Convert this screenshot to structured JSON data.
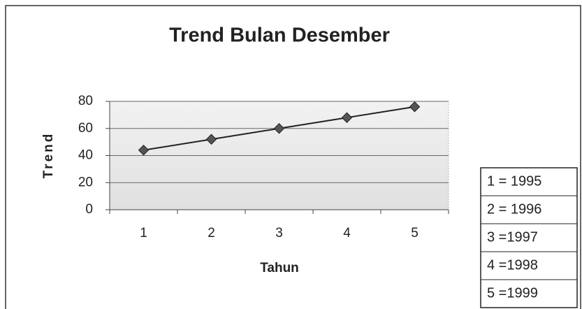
{
  "chart_data": {
    "type": "line",
    "title": "Trend Bulan Desember",
    "x_label": "Tahun",
    "y_label": "Trend",
    "categories": [
      "1",
      "2",
      "3",
      "4",
      "5"
    ],
    "series": [
      {
        "name": "Trend",
        "color": "#222222",
        "values": [
          44,
          52,
          60,
          68,
          76
        ]
      }
    ],
    "ylim": [
      0,
      80
    ],
    "yticks": [
      0,
      20,
      40,
      60,
      80
    ],
    "grid": true,
    "annotations": [
      "1 = 1995",
      "2 = 1996",
      "3 =1997",
      "4 =1998",
      "5 =1999"
    ]
  }
}
